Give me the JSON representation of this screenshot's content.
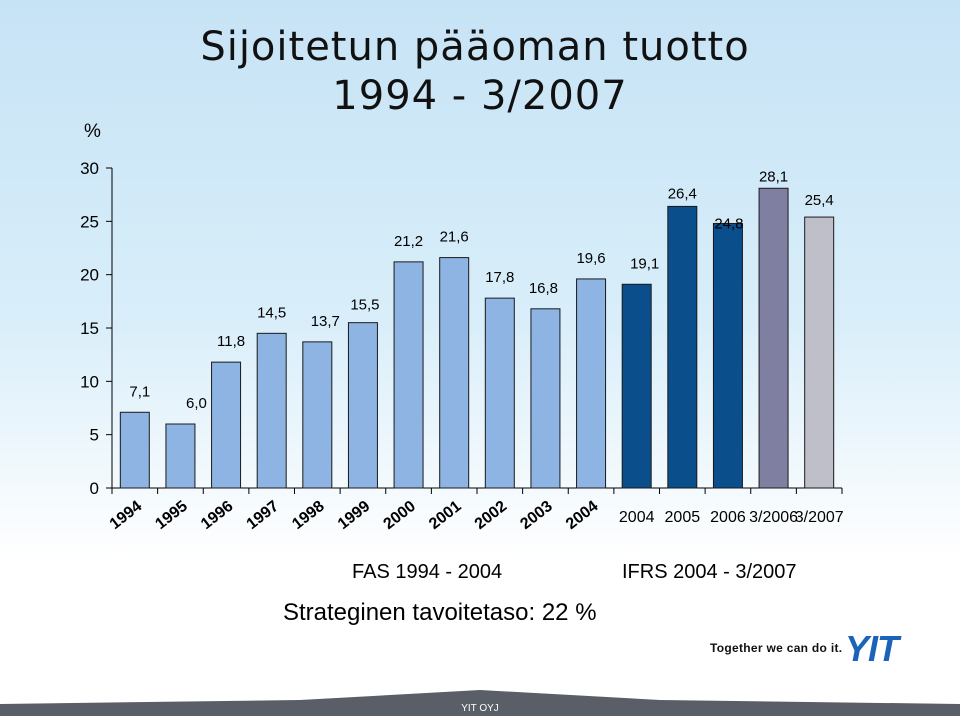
{
  "title_line1": "Sijoitetun pääoman tuotto",
  "title_line2": "1994 - 3/2007",
  "chart_data": {
    "type": "bar",
    "ylabel": "%",
    "ylim": [
      0,
      30
    ],
    "yticks": [
      0,
      5,
      10,
      15,
      20,
      25,
      30
    ],
    "grid": false,
    "categories": [
      "1994",
      "1995",
      "1996",
      "1997",
      "1998",
      "1999",
      "2000",
      "2001",
      "2002",
      "2003",
      "2004",
      "2004",
      "2005",
      "2006",
      "3/2006",
      "3/2007"
    ],
    "values": [
      7.1,
      6.0,
      11.8,
      14.5,
      13.7,
      15.5,
      21.2,
      21.6,
      17.8,
      16.8,
      19.6,
      19.1,
      26.4,
      24.8,
      28.1,
      25.4
    ],
    "value_labels": [
      "7,1",
      "6,0",
      "11,8",
      "14,5",
      "13,7",
      "15,5",
      "21,2",
      "21,6",
      "17,8",
      "16,8",
      "19,6",
      "19,1",
      "26,4",
      "24,8",
      "28,1",
      "25,4"
    ],
    "bar_colors": [
      "#8db4e2",
      "#8db4e2",
      "#8db4e2",
      "#8db4e2",
      "#8db4e2",
      "#8db4e2",
      "#8db4e2",
      "#8db4e2",
      "#8db4e2",
      "#8db4e2",
      "#8db4e2",
      "#0a4e8c",
      "#0a4e8c",
      "#0a4e8c",
      "#7f7fa2",
      "#bfbfca"
    ],
    "group_labels": [
      "FAS 1994 - 2004",
      "IFRS 2004 - 3/2007"
    ]
  },
  "target_text": "Strateginen tavoitetaso: 22 %",
  "slogan": "Together we can do it.",
  "logo_text": "YIT",
  "footer": "YIT OYJ",
  "colors": {
    "fas_bar": "#8db4e2",
    "ifrs_bar": "#0a4e8c",
    "q_2006_bar": "#7f7fa2",
    "q_2007_bar": "#bfbfca",
    "footer_dark": "#5a5e66",
    "logo_blue": "#1a63b8"
  }
}
